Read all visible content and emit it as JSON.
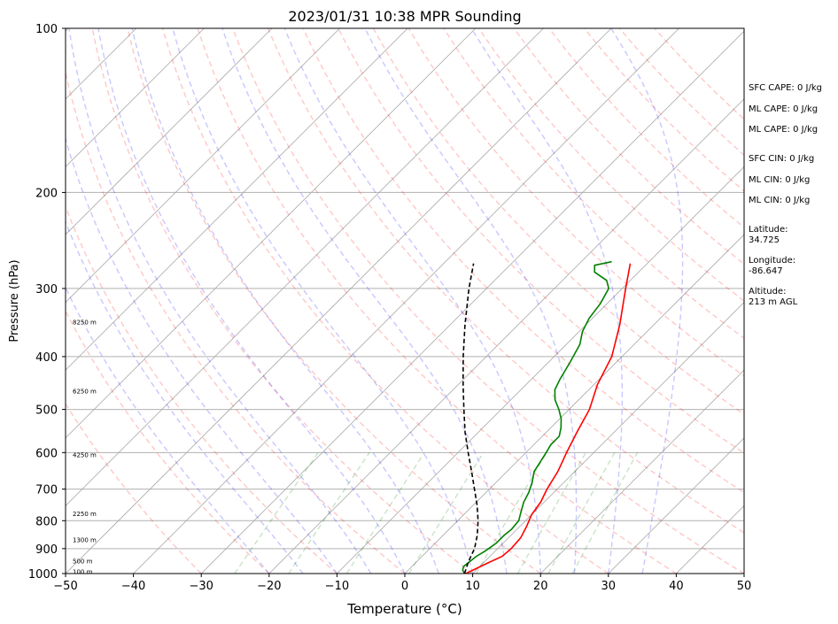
{
  "chart_data": {
    "type": "line",
    "title": "2023/01/31 10:38 MPR Sounding",
    "xlabel": "Temperature (°C)",
    "ylabel": "Pressure (hPa)",
    "xlim": [
      -50,
      50
    ],
    "ylim": [
      1000,
      100
    ],
    "y_scale": "log",
    "x_ticks": [
      -50,
      -40,
      -30,
      -20,
      -10,
      0,
      10,
      20,
      30,
      40,
      50
    ],
    "x_tick_labels": [
      "−50",
      "−40",
      "−30",
      "−20",
      "−10",
      "0",
      "10",
      "20",
      "30",
      "40",
      "50"
    ],
    "y_ticks": [
      1000,
      900,
      800,
      700,
      600,
      500,
      400,
      300,
      200,
      100
    ],
    "y_tick_labels": [
      "1000",
      "900",
      "800",
      "700",
      "600",
      "500",
      "400",
      "300",
      "200",
      "100"
    ],
    "grid_pressures": [
      1000,
      900,
      800,
      700,
      600,
      500,
      400,
      300,
      200
    ],
    "height_labels": [
      {
        "text": "100 m",
        "p": 990
      },
      {
        "text": "500 m",
        "p": 947
      },
      {
        "text": "1300 m",
        "p": 866
      },
      {
        "text": "2250 m",
        "p": 775
      },
      {
        "text": "4250 m",
        "p": 605
      },
      {
        "text": "6250 m",
        "p": 462
      },
      {
        "text": "8250 m",
        "p": 345
      }
    ],
    "series": [
      {
        "name": "",
        "color": "#ff0000",
        "points": [
          [
            1000,
            9.0
          ],
          [
            960,
            10.5
          ],
          [
            930,
            11.8
          ],
          [
            900,
            12.0
          ],
          [
            860,
            11.8
          ],
          [
            820,
            11.0
          ],
          [
            780,
            10.0
          ],
          [
            740,
            9.5
          ],
          [
            700,
            8.5
          ],
          [
            650,
            7.5
          ],
          [
            600,
            6.0
          ],
          [
            550,
            4.5
          ],
          [
            500,
            3.0
          ],
          [
            450,
            0.5
          ],
          [
            400,
            -1.5
          ],
          [
            350,
            -5.0
          ],
          [
            300,
            -9.5
          ],
          [
            270,
            -12.5
          ]
        ]
      },
      {
        "name": "",
        "color": "#008000",
        "points": [
          [
            1000,
            8.8
          ],
          [
            985,
            8.0
          ],
          [
            970,
            7.6
          ],
          [
            950,
            7.8
          ],
          [
            930,
            8.0
          ],
          [
            910,
            8.5
          ],
          [
            880,
            9.0
          ],
          [
            850,
            9.0
          ],
          [
            830,
            9.2
          ],
          [
            800,
            9.0
          ],
          [
            770,
            8.0
          ],
          [
            740,
            7.0
          ],
          [
            710,
            6.3
          ],
          [
            680,
            5.3
          ],
          [
            650,
            4.0
          ],
          [
            600,
            3.0
          ],
          [
            580,
            2.5
          ],
          [
            560,
            2.5
          ],
          [
            540,
            1.5
          ],
          [
            520,
            0.2
          ],
          [
            500,
            -1.5
          ],
          [
            480,
            -3.5
          ],
          [
            460,
            -5.0
          ],
          [
            440,
            -5.8
          ],
          [
            410,
            -6.8
          ],
          [
            380,
            -8.0
          ],
          [
            360,
            -9.5
          ],
          [
            340,
            -10.5
          ],
          [
            320,
            -11.0
          ],
          [
            300,
            -12.0
          ],
          [
            290,
            -13.5
          ],
          [
            280,
            -16.5
          ],
          [
            272,
            -17.5
          ],
          [
            268,
            -15.5
          ]
        ]
      },
      {
        "name": "",
        "color": "#000000",
        "points": [
          [
            1000,
            8.8
          ],
          [
            950,
            7.6
          ],
          [
            900,
            6.6
          ],
          [
            850,
            5.0
          ],
          [
            800,
            3.0
          ],
          [
            750,
            0.6
          ],
          [
            700,
            -2.2
          ],
          [
            650,
            -5.2
          ],
          [
            600,
            -8.5
          ],
          [
            550,
            -12.0
          ],
          [
            500,
            -15.5
          ],
          [
            450,
            -19.3
          ],
          [
            400,
            -23.4
          ],
          [
            350,
            -27.8
          ],
          [
            300,
            -32.6
          ],
          [
            270,
            -35.6
          ]
        ]
      }
    ],
    "dry_adiabats_c": [
      -30,
      -20,
      -10,
      0,
      10,
      20,
      30,
      40,
      50,
      60,
      70,
      80,
      90,
      100,
      110,
      120,
      130,
      140,
      150,
      160,
      170
    ],
    "moist_adiabats_c": [
      -20,
      -15,
      -10,
      -5,
      0,
      5,
      10,
      15,
      20,
      25,
      30,
      35
    ],
    "mixing_ratio_gkg": [
      0.5,
      1,
      2,
      4,
      8,
      12,
      16,
      20
    ],
    "text_panel": {
      "sfc_cape": "SFC CAPE: 0 J/kg",
      "ml_cape_1": "ML CAPE: 0 J/kg",
      "ml_cape_2": "ML CAPE: 0 J/kg",
      "sfc_cin": "SFC CIN: 0 J/kg",
      "ml_cin_1": "ML CIN: 0 J/kg",
      "ml_cin_2": "ML CIN: 0 J/kg",
      "latitude": "Latitude:\n34.725",
      "longitude": "Longitude:\n-86.647",
      "altitude": "Altitude:\n213 m AGL"
    }
  }
}
